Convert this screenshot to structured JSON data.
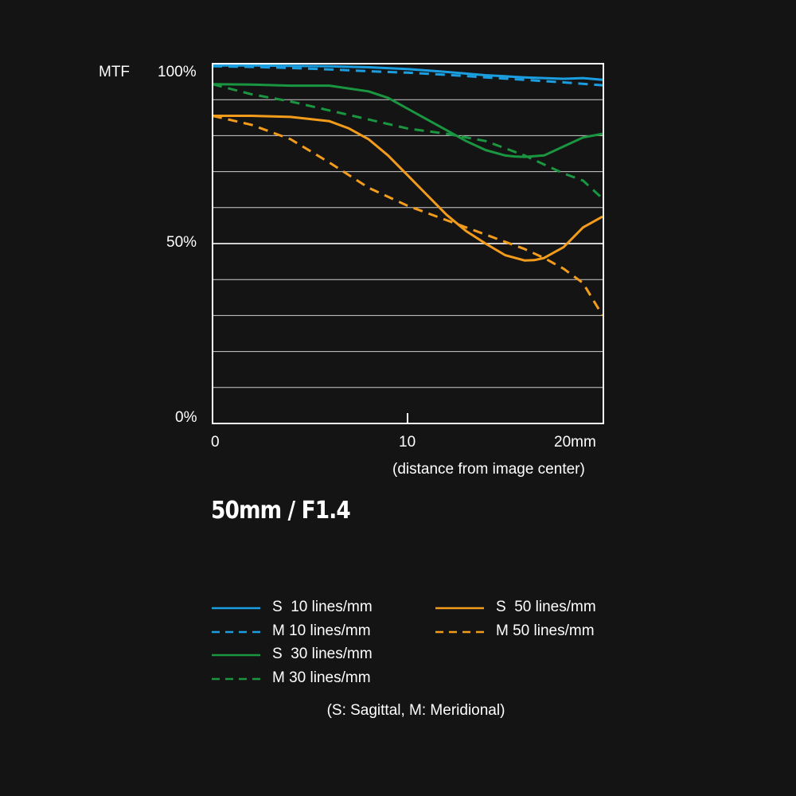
{
  "chart_data": {
    "type": "line",
    "title": "50mm / F1.4",
    "ylabel": "MTF",
    "xlabel": "(distance from image center)",
    "xlim": [
      0,
      20
    ],
    "ylim": [
      0,
      100
    ],
    "x_ticks": [
      {
        "value": 0,
        "label": "0"
      },
      {
        "value": 10,
        "label": "10"
      },
      {
        "value": 20,
        "label": "20mm"
      }
    ],
    "y_ticks": [
      {
        "value": 100,
        "label": "100%"
      },
      {
        "value": 50,
        "label": "50%"
      },
      {
        "value": 0,
        "label": "0%"
      }
    ],
    "gridlines_y": [
      10,
      20,
      30,
      40,
      50,
      60,
      70,
      80,
      90
    ],
    "series": [
      {
        "name": "S  10 lines/mm",
        "color": "#1a9ee0",
        "dash": false,
        "x": [
          0,
          2,
          4,
          6,
          8,
          10,
          12,
          14,
          16,
          18,
          19,
          20
        ],
        "y": [
          99.5,
          99.5,
          99.4,
          99.3,
          99.0,
          98.5,
          97.7,
          96.8,
          96.2,
          95.8,
          96.0,
          95.5
        ]
      },
      {
        "name": "M 10 lines/mm",
        "color": "#1a9ee0",
        "dash": true,
        "x": [
          0,
          2,
          4,
          6,
          8,
          10,
          12,
          14,
          16,
          18,
          20
        ],
        "y": [
          99.3,
          99.1,
          98.8,
          98.4,
          97.9,
          97.5,
          96.9,
          96.2,
          95.5,
          94.8,
          94.0
        ]
      },
      {
        "name": "S  30 lines/mm",
        "color": "#1a9640",
        "dash": false,
        "x": [
          0,
          2,
          4,
          6,
          8,
          9,
          10,
          11,
          12,
          13,
          14,
          15,
          15.5,
          16,
          17,
          18,
          19,
          20
        ],
        "y": [
          94.3,
          94.2,
          93.9,
          93.9,
          92.3,
          90.5,
          87.5,
          84.5,
          81.5,
          78.5,
          76.0,
          74.5,
          74.2,
          74.1,
          74.5,
          77.0,
          79.5,
          80.5
        ]
      },
      {
        "name": "M 30 lines/mm",
        "color": "#1a9640",
        "dash": true,
        "x": [
          0,
          2,
          4,
          6,
          8,
          10,
          12,
          14,
          16,
          17,
          18,
          19,
          20
        ],
        "y": [
          94.3,
          91.5,
          89.5,
          87.0,
          84.5,
          82.0,
          80.5,
          78.5,
          74.5,
          72.0,
          69.5,
          67.5,
          62.5
        ]
      },
      {
        "name": "S  50 lines/mm",
        "color": "#f39c1c",
        "dash": false,
        "x": [
          0,
          2,
          4,
          6,
          7,
          8,
          9,
          10,
          11,
          12,
          13,
          14,
          15,
          16,
          16.5,
          17,
          18,
          19,
          20
        ],
        "y": [
          85.5,
          85.5,
          85.2,
          84.0,
          82.0,
          79.0,
          74.5,
          69.0,
          63.5,
          58.0,
          53.5,
          50.0,
          46.8,
          45.3,
          45.4,
          46.0,
          49.0,
          54.5,
          57.5
        ]
      },
      {
        "name": "M 50 lines/mm",
        "color": "#f39c1c",
        "dash": true,
        "x": [
          0,
          2,
          4,
          6,
          8,
          10,
          12,
          14,
          16,
          17,
          18,
          19,
          20
        ],
        "y": [
          85.5,
          83.0,
          79.0,
          72.5,
          65.5,
          60.5,
          56.5,
          52.5,
          48.5,
          46.0,
          43.0,
          39.0,
          30.0
        ]
      }
    ]
  },
  "legend_note": "(S: Sagittal, M: Meridional)"
}
